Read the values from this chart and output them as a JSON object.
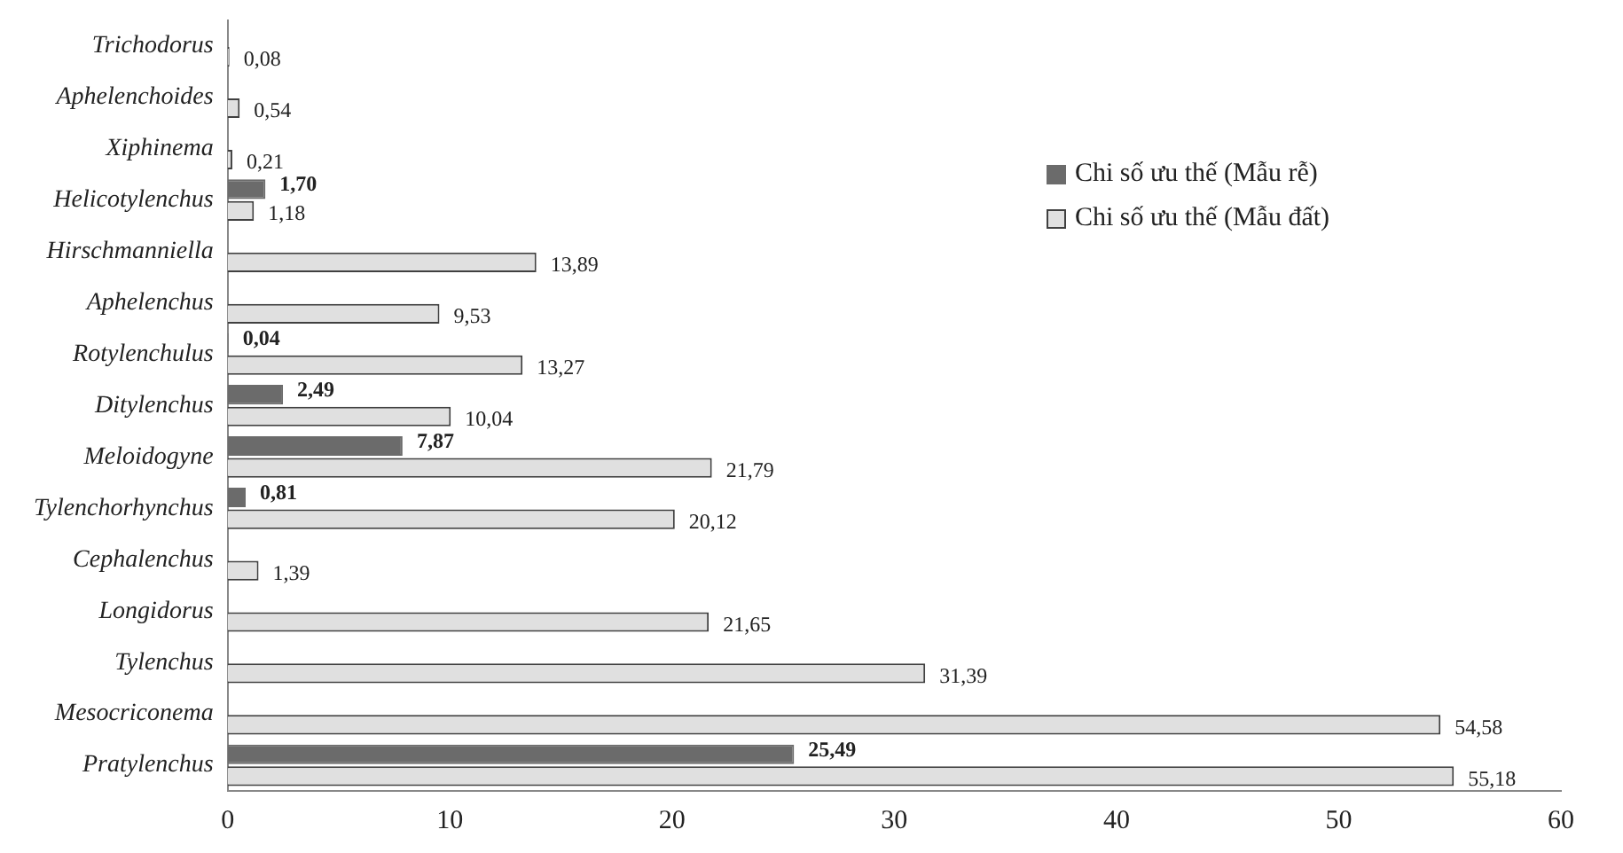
{
  "chart_data": {
    "type": "bar",
    "orientation": "horizontal",
    "categories": [
      "Trichodorus",
      "Aphelenchoides",
      "Xiphinema",
      "Helicotylenchus",
      "Hirschmanniella",
      "Aphelenchus",
      "Rotylenchulus",
      "Ditylenchus",
      "Meloidogyne",
      "Tylenchorhynchus",
      "Cephalenchus",
      "Longidorus",
      "Tylenchus",
      "Mesocriconema",
      "Pratylenchus"
    ],
    "series": [
      {
        "name": "Chi số ưu thế (Mẫu rễ)",
        "color": "#6b6b6b",
        "values": [
          null,
          null,
          null,
          1.7,
          null,
          null,
          0.04,
          2.49,
          7.87,
          0.81,
          null,
          null,
          null,
          null,
          25.49
        ],
        "value_labels": [
          null,
          null,
          null,
          "1,70",
          null,
          null,
          "0,04",
          "2,49",
          "7,87",
          "0,81",
          null,
          null,
          null,
          null,
          "25,49"
        ]
      },
      {
        "name": "Chi số ưu thế (Mẫu đất)",
        "color": "#e0e0e0",
        "values": [
          0.08,
          0.54,
          0.21,
          1.18,
          13.89,
          9.53,
          13.27,
          10.04,
          21.79,
          20.12,
          1.39,
          21.65,
          31.39,
          54.58,
          55.18
        ],
        "value_labels": [
          "0,08",
          "0,54",
          "0,21",
          "1,18",
          "13,89",
          "9,53",
          "13,27",
          "10,04",
          "21,79",
          "20,12",
          "1,39",
          "21,65",
          "31,39",
          "54,58",
          "55,18"
        ]
      }
    ],
    "xlim": [
      0,
      60
    ],
    "xticks": [
      0,
      10,
      20,
      30,
      40,
      50,
      60
    ],
    "grid": false,
    "legend": "top right"
  }
}
